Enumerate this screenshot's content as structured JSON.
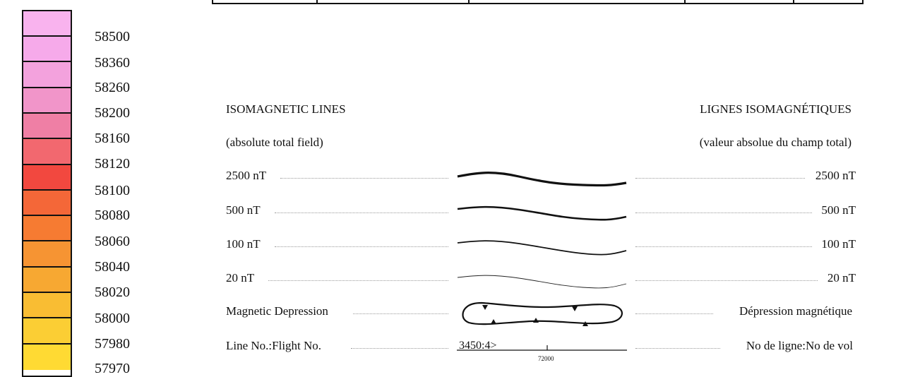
{
  "colorbar": {
    "swatches": [
      "#f9b3ee",
      "#f6aaea",
      "#f3a2dd",
      "#f195c9",
      "#ef7fa5",
      "#f2686f",
      "#f2483f",
      "#f46738",
      "#f67b32",
      "#f69433",
      "#f7a832",
      "#f9bd33",
      "#fbce34",
      "#ffda33"
    ],
    "ticks": [
      "58500",
      "58360",
      "58260",
      "58200",
      "58160",
      "58120",
      "58100",
      "58080",
      "58060",
      "58040",
      "58020",
      "58000",
      "57980",
      "57970"
    ]
  },
  "legend": {
    "title_en": "ISOMAGNETIC LINES",
    "title_fr": "LIGNES ISOMAGNÉTIQUES",
    "subtitle_en": "(absolute total field)",
    "subtitle_fr": "(valeur absolue du champ total)",
    "rows": [
      {
        "en": "2500 nT",
        "fr": "2500 nT"
      },
      {
        "en": "500 nT",
        "fr": "500 nT"
      },
      {
        "en": "100 nT",
        "fr": "100 nT"
      },
      {
        "en": "20 nT",
        "fr": "20 nT"
      },
      {
        "en": "Magnetic Depression",
        "fr": "Dépression magnétique"
      },
      {
        "en": "Line No.:Flight No.",
        "fr": "No de ligne:No de vol"
      }
    ],
    "line_label": "3450:4>",
    "fiducial": "72000"
  }
}
